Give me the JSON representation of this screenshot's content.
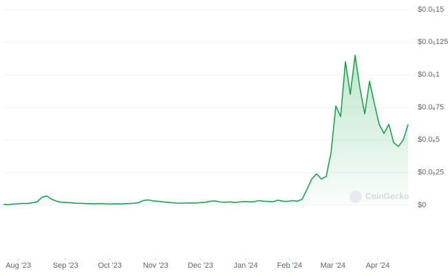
{
  "chart_data": {
    "type": "line",
    "watermark": "CoinGecko",
    "series": [
      {
        "color": "#16a34a",
        "values": [
          6e-09,
          3e-09,
          8e-09,
          1e-08,
          1.3e-08,
          1.2e-08,
          1.8e-08,
          2.5e-08,
          6e-08,
          7e-08,
          4.5e-08,
          3e-08,
          2.2e-08,
          2e-08,
          1.8e-08,
          1.5e-08,
          1.4e-08,
          1.2e-08,
          1.1e-08,
          1e-08,
          1.2e-08,
          1e-08,
          8e-09,
          1.1e-08,
          9e-09,
          1e-08,
          1.2e-08,
          1.4e-08,
          1.8e-08,
          3.5e-08,
          4e-08,
          3.2e-08,
          3e-08,
          2.5e-08,
          2.2e-08,
          1.8e-08,
          1.6e-08,
          1.5e-08,
          1.6e-08,
          1.7e-08,
          1.6e-08,
          2e-08,
          2.2e-08,
          3e-08,
          3.2e-08,
          2.4e-08,
          2.2e-08,
          2.5e-08,
          2e-08,
          2.4e-08,
          2.8e-08,
          2.5e-08,
          2.6e-08,
          3.5e-08,
          3e-08,
          2.8e-08,
          2.6e-08,
          3.8e-08,
          3e-08,
          2.8e-08,
          3.5e-08,
          3e-08,
          4.5e-08,
          1.2e-07,
          2e-07,
          2.4e-07,
          2e-07,
          2.2e-07,
          4e-07,
          7.6e-07,
          6.8e-07,
          1.1e-06,
          8.5e-07,
          1.15e-06,
          9e-07,
          7e-07,
          9.5e-07,
          7.8e-07,
          6.2e-07,
          5.5e-07,
          6.2e-07,
          4.8e-07,
          4.5e-07,
          5e-07,
          6.2e-07
        ]
      }
    ],
    "xlim": [
      0,
      84
    ],
    "xticks": [
      {
        "value": 3.1,
        "label": "Aug '23"
      },
      {
        "value": 12.9,
        "label": "Sep '23"
      },
      {
        "value": 22.1,
        "label": "Oct '23"
      },
      {
        "value": 31.6,
        "label": "Nov '23"
      },
      {
        "value": 40.9,
        "label": "Dec '23"
      },
      {
        "value": 50.3,
        "label": "Jan '24"
      },
      {
        "value": 59.4,
        "label": "Feb '24"
      },
      {
        "value": 68.4,
        "label": "Mar '24"
      },
      {
        "value": 77.7,
        "label": "Apr '24"
      }
    ],
    "ylim": [
      0,
      1.5e-06
    ],
    "yticks": [
      {
        "value": 0,
        "label": "$0"
      },
      {
        "value": 2.5e-07,
        "label": "$0.0₆25"
      },
      {
        "value": 5e-07,
        "label": "$0.0₆5"
      },
      {
        "value": 7.5e-07,
        "label": "$0.0₆75"
      },
      {
        "value": 1e-06,
        "label": "$0.0₅1"
      },
      {
        "value": 1.25e-06,
        "label": "$0.0₅125"
      },
      {
        "value": 1.5e-06,
        "label": "$0.0₅15"
      }
    ],
    "grid": true
  }
}
